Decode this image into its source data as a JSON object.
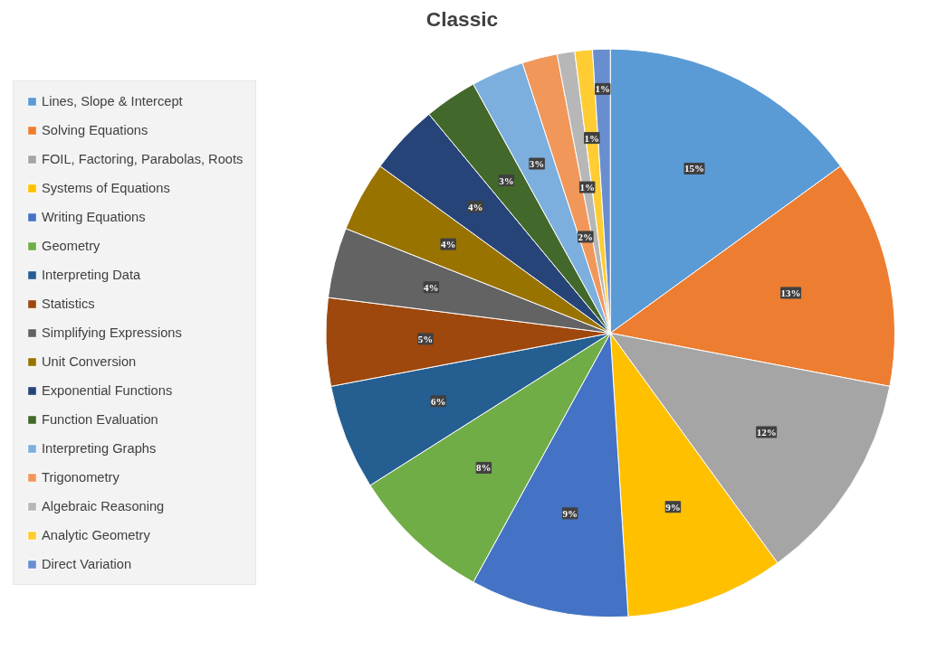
{
  "chart_data": {
    "type": "pie",
    "title": "Classic",
    "categories": [
      "Lines, Slope & Intercept",
      "Solving Equations",
      "FOIL, Factoring, Parabolas, Roots",
      "Systems of Equations",
      "Writing Equations",
      "Geometry",
      "Interpreting Data",
      "Statistics",
      "Simplifying Expressions",
      "Unit Conversion",
      "Exponential Functions",
      "Function Evaluation",
      "Interpreting Graphs",
      "Trigonometry",
      "Algebraic Reasoning",
      "Analytic Geometry",
      "Direct Variation"
    ],
    "values": [
      15,
      13,
      12,
      9,
      9,
      8,
      6,
      5,
      4,
      4,
      4,
      3,
      3,
      2,
      1,
      1,
      1
    ],
    "colors": [
      "#5b9bd5",
      "#ed7d31",
      "#a5a5a5",
      "#ffc000",
      "#4472c4",
      "#70ad47",
      "#255e91",
      "#9e480e",
      "#636363",
      "#997300",
      "#264478",
      "#43682b",
      "#7cafdd",
      "#f1975a",
      "#b7b7b7",
      "#ffcd33",
      "#698ed0"
    ],
    "value_labels": [
      "15%",
      "13%",
      "12%",
      "9%",
      "9%",
      "8%",
      "6%",
      "5%",
      "4%",
      "4%",
      "4%",
      "3%",
      "3%",
      "2%",
      "1%",
      "1%",
      "1%"
    ],
    "data_labels": true,
    "legend": "left"
  }
}
